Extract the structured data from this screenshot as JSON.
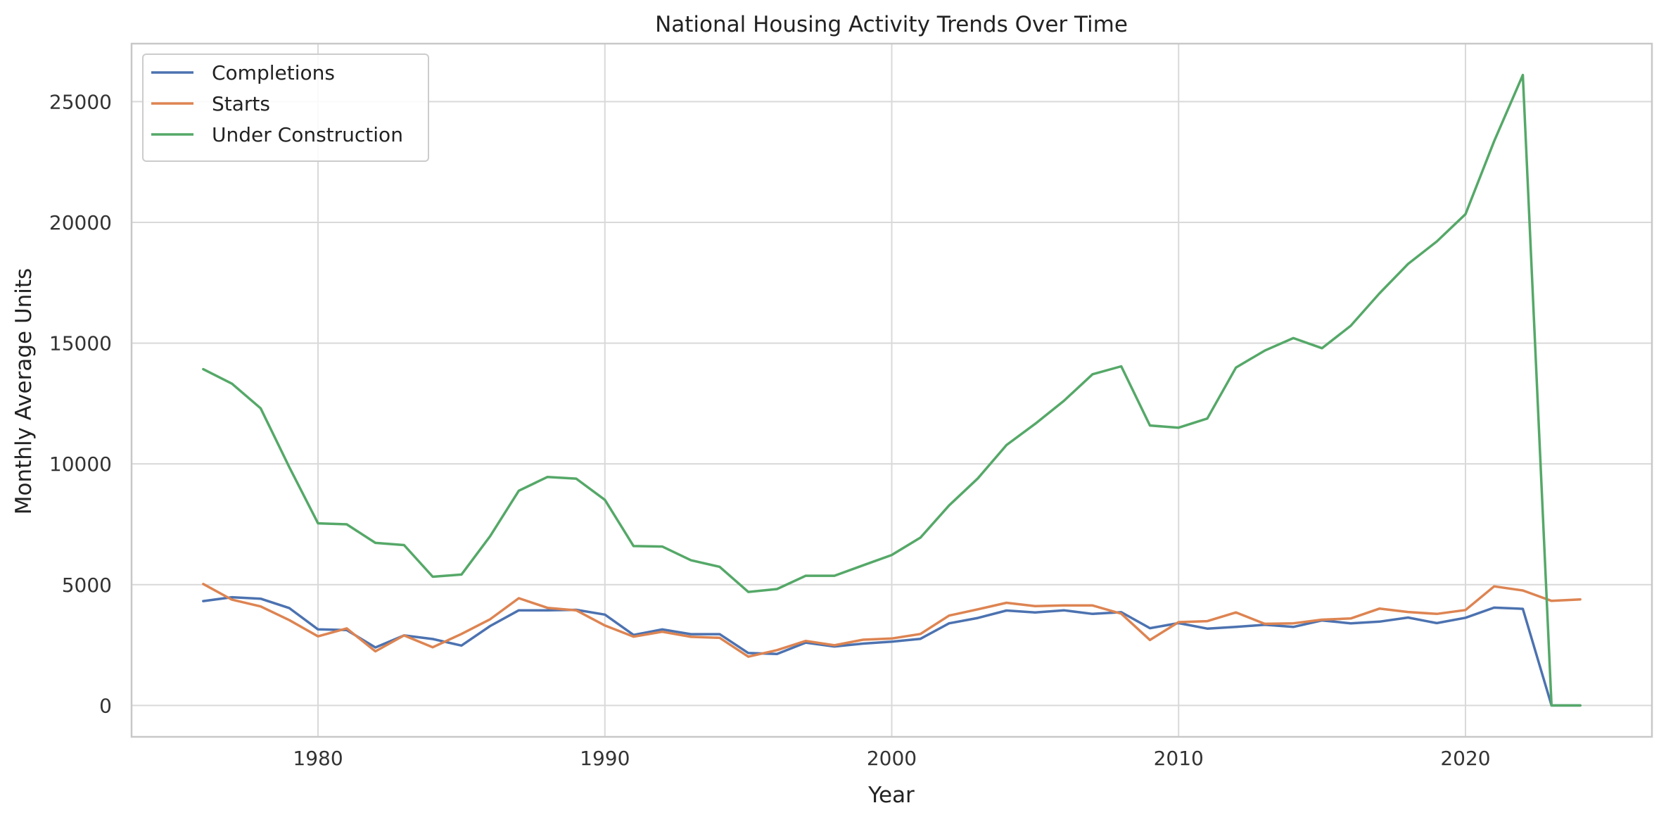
{
  "chart_data": {
    "type": "line",
    "title": "National Housing Activity Trends Over Time",
    "xlabel": "Year",
    "ylabel": "Monthly Average Units",
    "xlim": [
      1973.5,
      2026.5
    ],
    "ylim": [
      -1300,
      27400
    ],
    "xticks": [
      1980,
      1990,
      2000,
      2010,
      2020
    ],
    "yticks": [
      0,
      5000,
      10000,
      15000,
      20000,
      25000
    ],
    "grid": true,
    "legend_position": "top-left",
    "x": [
      1976,
      1977,
      1978,
      1979,
      1980,
      1981,
      1982,
      1983,
      1984,
      1985,
      1986,
      1987,
      1988,
      1989,
      1990,
      1991,
      1992,
      1993,
      1994,
      1995,
      1996,
      1997,
      1998,
      1999,
      2000,
      2001,
      2002,
      2003,
      2004,
      2005,
      2006,
      2007,
      2008,
      2009,
      2010,
      2011,
      2012,
      2013,
      2014,
      2015,
      2016,
      2017,
      2018,
      2019,
      2020,
      2021,
      2022,
      2023,
      2024
    ],
    "series": [
      {
        "name": "Completions",
        "color": "#4c72b0",
        "values": [
          4320,
          4480,
          4420,
          4030,
          3150,
          3120,
          2400,
          2900,
          2750,
          2480,
          3290,
          3940,
          3940,
          3960,
          3760,
          2920,
          3150,
          2950,
          2950,
          2170,
          2130,
          2600,
          2440,
          2560,
          2640,
          2760,
          3400,
          3620,
          3930,
          3850,
          3940,
          3790,
          3860,
          3200,
          3410,
          3180,
          3250,
          3340,
          3250,
          3520,
          3400,
          3470,
          3640,
          3410,
          3630,
          4050,
          4000,
          0,
          0
        ]
      },
      {
        "name": "Starts",
        "color": "#dd8452",
        "values": [
          5030,
          4380,
          4100,
          3530,
          2860,
          3190,
          2240,
          2900,
          2410,
          2960,
          3570,
          4440,
          4040,
          3940,
          3310,
          2850,
          3050,
          2840,
          2800,
          2020,
          2290,
          2670,
          2490,
          2720,
          2770,
          2960,
          3720,
          3980,
          4250,
          4110,
          4140,
          4140,
          3800,
          2710,
          3450,
          3490,
          3850,
          3380,
          3400,
          3550,
          3600,
          4010,
          3870,
          3790,
          3950,
          4930,
          4760,
          4330,
          4390
        ]
      },
      {
        "name": "Under Construction",
        "color": "#55a868",
        "values": [
          13920,
          13320,
          12300,
          9860,
          7540,
          7500,
          6730,
          6640,
          5330,
          5420,
          7010,
          8890,
          9460,
          9390,
          8510,
          6600,
          6580,
          6010,
          5740,
          4700,
          4820,
          5370,
          5370,
          5800,
          6230,
          6950,
          8280,
          9400,
          10780,
          11660,
          12610,
          13710,
          14040,
          11590,
          11500,
          11880,
          13990,
          14690,
          15210,
          14790,
          15720,
          17060,
          18280,
          19210,
          20340,
          23360,
          26100,
          0,
          0
        ]
      }
    ]
  }
}
